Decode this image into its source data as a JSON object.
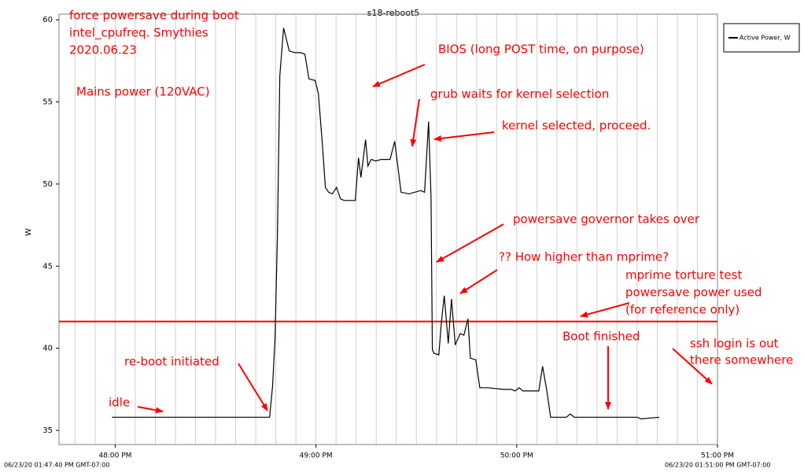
{
  "chart_data": {
    "type": "line",
    "title": "s18-reboot5",
    "y_label": "W",
    "x_start_label": "06/23/20 01:47:40 PM GMT-07:00",
    "x_end_label": "06/23/20 01:51:00 PM GMT-07:00",
    "xlim": [
      47.72,
      51.0
    ],
    "xticks": [
      {
        "value": 48,
        "label": "48:00 PM"
      },
      {
        "value": 49,
        "label": "49:00 PM"
      },
      {
        "value": 50,
        "label": "50:00 PM"
      },
      {
        "value": 51,
        "label": "51:00 PM"
      }
    ],
    "x_grid_step": 0.1,
    "ylim": [
      34.14,
      60.34
    ],
    "yticks": [
      35,
      40,
      45,
      50,
      55,
      60
    ],
    "legend": "top-right",
    "series": [
      {
        "name": "Active Power, W",
        "color": "#000000",
        "x": [
          47.984,
          48.769,
          48.784,
          48.796,
          48.808,
          48.82,
          48.839,
          48.867,
          48.894,
          48.925,
          48.945,
          48.965,
          48.996,
          49.012,
          49.031,
          49.047,
          49.063,
          49.082,
          49.102,
          49.122,
          49.141,
          49.196,
          49.212,
          49.224,
          49.247,
          49.259,
          49.275,
          49.298,
          49.325,
          49.369,
          49.392,
          49.424,
          49.463,
          49.522,
          49.541,
          49.561,
          49.573,
          49.58,
          49.588,
          49.612,
          49.624,
          49.639,
          49.659,
          49.675,
          49.694,
          49.718,
          49.737,
          49.757,
          49.769,
          49.796,
          49.816,
          49.855,
          49.933,
          49.973,
          49.992,
          50.012,
          50.031,
          50.11,
          50.129,
          50.149,
          50.169,
          50.247,
          50.267,
          50.286,
          50.6,
          50.62,
          50.71
        ],
        "values": [
          35.8,
          35.8,
          37.7,
          40.6,
          46.8,
          56.6,
          59.5,
          58.1,
          58.0,
          58.0,
          57.9,
          56.4,
          56.3,
          55.5,
          52.6,
          49.8,
          49.5,
          49.4,
          49.8,
          49.1,
          49.0,
          49.0,
          51.6,
          50.4,
          52.7,
          51.1,
          51.5,
          51.4,
          51.5,
          51.5,
          52.6,
          49.5,
          49.4,
          49.6,
          49.5,
          53.8,
          49.2,
          39.9,
          39.7,
          39.6,
          41.5,
          43.2,
          40.3,
          43.0,
          40.2,
          40.9,
          40.8,
          41.8,
          39.4,
          39.3,
          37.6,
          37.6,
          37.5,
          37.5,
          37.4,
          37.6,
          37.4,
          37.4,
          38.9,
          37.5,
          35.8,
          35.8,
          36.0,
          35.8,
          35.8,
          35.7,
          35.8
        ]
      }
    ],
    "reference_line": {
      "value": 41.63,
      "color": "#ff0000"
    },
    "annotations": [
      [
        "force powersave during boot",
        "intel_cpufreq. Smythies",
        "2020.06.23"
      ],
      [
        "Mains power (120VAC)"
      ],
      [
        "BIOS  (long POST time, on purpose)"
      ],
      [
        "grub waits for kernel selection"
      ],
      [
        "kernel selected, proceed."
      ],
      [
        "powersave governor takes over"
      ],
      [
        "?? How higher than mprime?"
      ],
      [
        "mprime torture test",
        "powersave power used",
        "(for reference only)"
      ],
      [
        "Boot finished"
      ],
      [
        "ssh login is out",
        "there somewhere"
      ],
      [
        "re-boot initiated"
      ],
      [
        "idle"
      ]
    ]
  }
}
